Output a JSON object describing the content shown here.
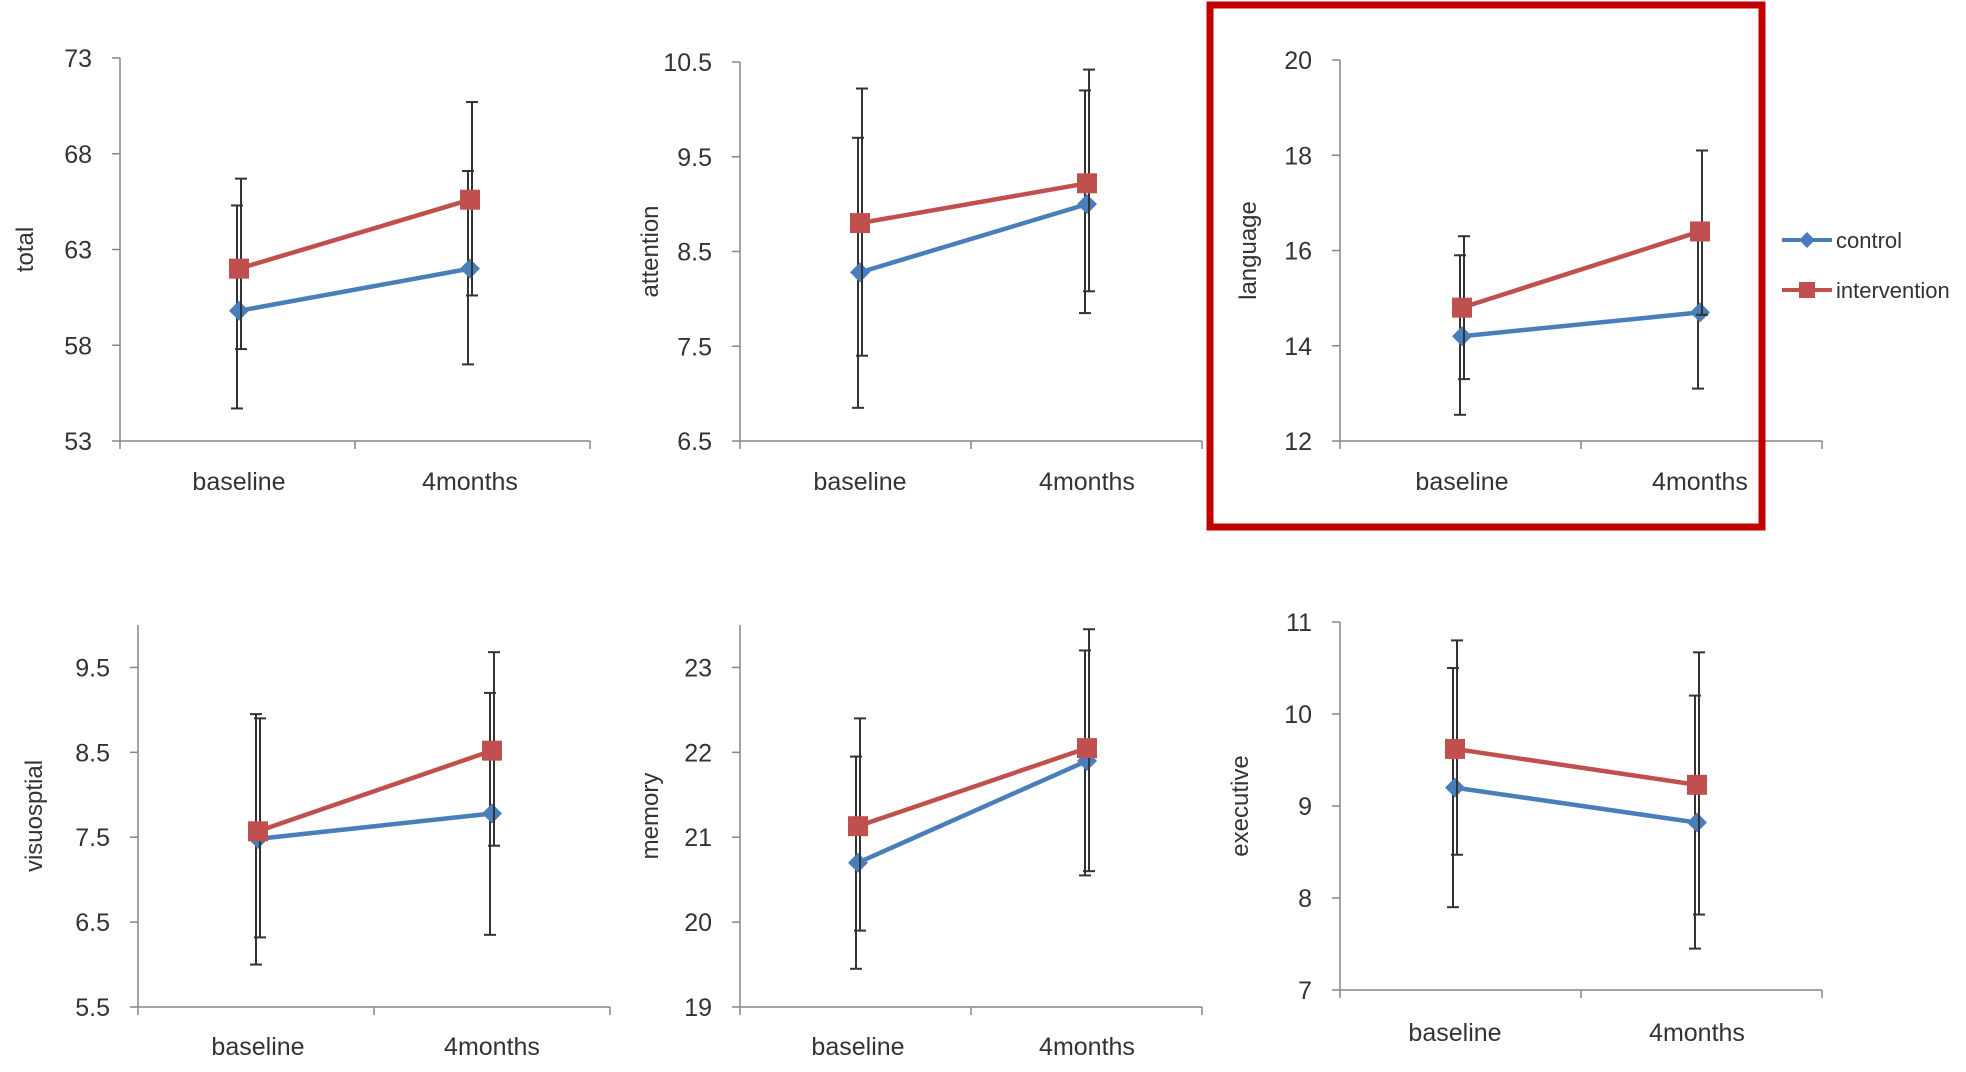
{
  "legend": [
    {
      "name": "control",
      "color": "#4a7ebb",
      "marker": "diamond"
    },
    {
      "name": "intervention",
      "color": "#c0504d",
      "marker": "square"
    }
  ],
  "highlight": {
    "panel": "language",
    "color": "#c00000"
  },
  "chart_data": [
    {
      "type": "line",
      "ylabel": "total",
      "categories": [
        "baseline",
        "4months"
      ],
      "yticks": [
        "53",
        "58",
        "63",
        "68",
        "73"
      ],
      "ylim": [
        53,
        73
      ],
      "series": [
        {
          "name": "control",
          "values": [
            59.8,
            62.0
          ],
          "err_low": [
            54.7,
            57.0
          ],
          "err_high": [
            65.3,
            67.1
          ]
        },
        {
          "name": "intervention",
          "values": [
            62.0,
            65.6
          ],
          "err_low": [
            57.8,
            60.6
          ],
          "err_high": [
            66.7,
            70.7
          ]
        }
      ]
    },
    {
      "type": "line",
      "ylabel": "attention",
      "categories": [
        "baseline",
        "4months"
      ],
      "yticks": [
        "6.5",
        "7.5",
        "8.5",
        "9.5",
        "10.5"
      ],
      "ylim": [
        6.5,
        10.5
      ],
      "series": [
        {
          "name": "control",
          "values": [
            8.28,
            9.0
          ],
          "err_low": [
            6.85,
            7.85
          ],
          "err_high": [
            9.7,
            10.2
          ]
        },
        {
          "name": "intervention",
          "values": [
            8.8,
            9.22
          ],
          "err_low": [
            7.4,
            8.08
          ],
          "err_high": [
            10.22,
            10.42
          ]
        }
      ]
    },
    {
      "type": "line",
      "ylabel": "language",
      "categories": [
        "baseline",
        "4months"
      ],
      "yticks": [
        "12",
        "14",
        "16",
        "18",
        "20"
      ],
      "ylim": [
        12,
        20
      ],
      "series": [
        {
          "name": "control",
          "values": [
            14.2,
            14.7
          ],
          "err_low": [
            12.55,
            13.1
          ],
          "err_high": [
            15.9,
            16.3
          ]
        },
        {
          "name": "intervention",
          "values": [
            14.8,
            16.4
          ],
          "err_low": [
            13.3,
            14.65
          ],
          "err_high": [
            16.3,
            18.1
          ]
        }
      ]
    },
    {
      "type": "line",
      "ylabel": "visuosptial",
      "categories": [
        "baseline",
        "4months"
      ],
      "yticks": [
        "5.5",
        "6.5",
        "7.5",
        "8.5",
        "9.5"
      ],
      "ylim": [
        5.5,
        10.0
      ],
      "series": [
        {
          "name": "control",
          "values": [
            7.48,
            7.78
          ],
          "err_low": [
            6.0,
            6.35
          ],
          "err_high": [
            8.95,
            9.2
          ]
        },
        {
          "name": "intervention",
          "values": [
            7.57,
            8.52
          ],
          "err_low": [
            6.32,
            7.4
          ],
          "err_high": [
            8.9,
            9.68
          ]
        }
      ]
    },
    {
      "type": "line",
      "ylabel": "memory",
      "categories": [
        "baseline",
        "4months"
      ],
      "yticks": [
        "19",
        "20",
        "21",
        "22",
        "23"
      ],
      "ylim": [
        19,
        23.5
      ],
      "series": [
        {
          "name": "control",
          "values": [
            20.7,
            21.9
          ],
          "err_low": [
            19.45,
            20.55
          ],
          "err_high": [
            21.95,
            23.2
          ]
        },
        {
          "name": "intervention",
          "values": [
            21.13,
            22.05
          ],
          "err_low": [
            19.9,
            20.6
          ],
          "err_high": [
            22.4,
            23.45
          ]
        }
      ]
    },
    {
      "type": "line",
      "ylabel": "executive",
      "categories": [
        "baseline",
        "4months"
      ],
      "yticks": [
        "7",
        "8",
        "9",
        "10",
        "11"
      ],
      "ylim": [
        7,
        11
      ],
      "series": [
        {
          "name": "control",
          "values": [
            9.2,
            8.82
          ],
          "err_low": [
            7.9,
            7.45
          ],
          "err_high": [
            10.5,
            10.2
          ]
        },
        {
          "name": "intervention",
          "values": [
            9.62,
            9.23
          ],
          "err_low": [
            8.47,
            7.82
          ],
          "err_high": [
            10.8,
            10.67
          ]
        }
      ]
    }
  ]
}
